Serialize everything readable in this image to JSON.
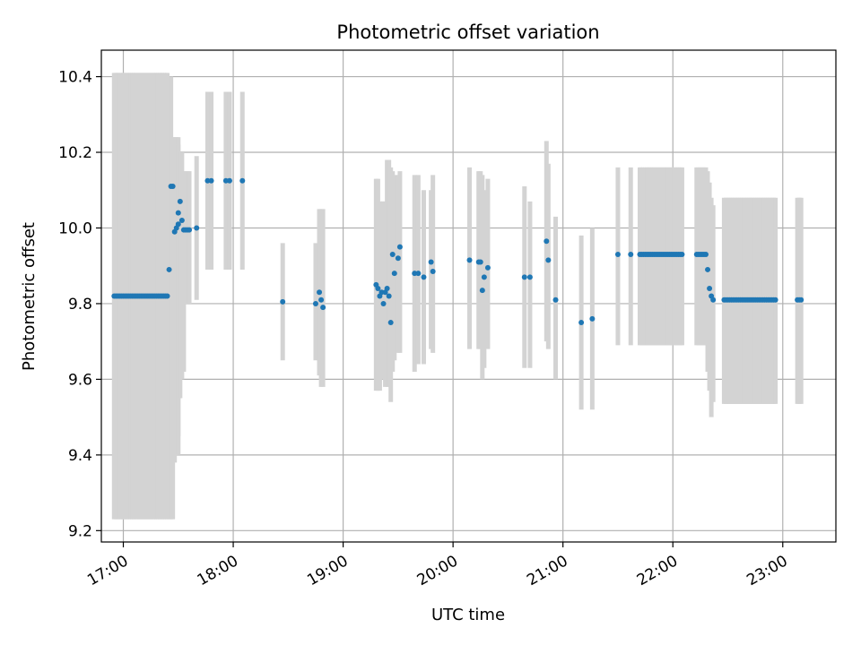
{
  "chart_data": {
    "type": "scatter",
    "title": "Photometric offset variation",
    "xlabel": "UTC time",
    "ylabel": "Photometric offset",
    "xlim": [
      "16:48",
      "23:29"
    ],
    "ylim": [
      9.17,
      10.47
    ],
    "x_ticks": [
      "17:00",
      "18:00",
      "19:00",
      "20:00",
      "21:00",
      "22:00",
      "23:00"
    ],
    "y_ticks": [
      "9.2",
      "9.4",
      "9.6",
      "9.8",
      "10.0",
      "10.2",
      "10.4"
    ],
    "grid": true,
    "colors": {
      "points": "#1f77b4",
      "error_bars": "#d3d3d3",
      "grid": "#b0b0b0"
    },
    "series": [
      {
        "x": [
          "16:55",
          "16:56",
          "16:57",
          "16:58",
          "16:59",
          "17:00",
          "17:01",
          "17:02",
          "17:03",
          "17:04",
          "17:05",
          "17:06",
          "17:07",
          "17:08",
          "17:09",
          "17:10",
          "17:11",
          "17:12",
          "17:13",
          "17:14",
          "17:15",
          "17:16",
          "17:17",
          "17:18",
          "17:19",
          "17:20",
          "17:21",
          "17:22",
          "17:23",
          "17:24",
          "17:25",
          "17:26",
          "17:27",
          "17:28",
          "17:29",
          "17:30",
          "17:30",
          "17:31",
          "17:32",
          "17:33",
          "17:34",
          "17:35",
          "17:36",
          "17:40",
          "17:46",
          "17:48",
          "17:56",
          "17:58",
          "18:05",
          "18:27",
          "18:45",
          "18:47",
          "18:48",
          "18:49",
          "19:18",
          "19:19",
          "19:20",
          "19:21",
          "19:22",
          "19:23",
          "19:24",
          "19:25",
          "19:26",
          "19:27",
          "19:28",
          "19:30",
          "19:31",
          "19:39",
          "19:41",
          "19:44",
          "19:48",
          "19:49",
          "20:09",
          "20:14",
          "20:15",
          "20:16",
          "20:17",
          "20:19",
          "20:39",
          "20:42",
          "20:51",
          "20:52",
          "20:56",
          "21:10",
          "21:16",
          "21:30",
          "21:37",
          "21:42",
          "21:43",
          "21:44",
          "21:45",
          "21:46",
          "21:47",
          "21:48",
          "21:49",
          "21:50",
          "21:51",
          "21:52",
          "21:53",
          "21:54",
          "21:55",
          "21:56",
          "21:57",
          "21:58",
          "21:59",
          "22:00",
          "22:01",
          "22:02",
          "22:03",
          "22:04",
          "22:05",
          "22:13",
          "22:14",
          "22:15",
          "22:16",
          "22:17",
          "22:18",
          "22:19",
          "22:20",
          "22:21",
          "22:22",
          "22:28",
          "22:29",
          "22:30",
          "22:31",
          "22:32",
          "22:33",
          "22:34",
          "22:35",
          "22:36",
          "22:37",
          "22:38",
          "22:39",
          "22:40",
          "22:41",
          "22:42",
          "22:43",
          "22:44",
          "22:45",
          "22:46",
          "22:47",
          "22:48",
          "22:49",
          "22:50",
          "22:51",
          "22:52",
          "22:53",
          "22:54",
          "22:55",
          "22:56",
          "23:08",
          "23:09",
          "23:10"
        ],
        "y": [
          9.82,
          9.82,
          9.82,
          9.82,
          9.82,
          9.82,
          9.82,
          9.82,
          9.82,
          9.82,
          9.82,
          9.82,
          9.82,
          9.82,
          9.82,
          9.82,
          9.82,
          9.82,
          9.82,
          9.82,
          9.82,
          9.82,
          9.82,
          9.82,
          9.82,
          9.82,
          9.82,
          9.82,
          9.82,
          9.82,
          9.89,
          10.11,
          10.11,
          9.99,
          10.0,
          10.01,
          10.04,
          10.07,
          10.02,
          9.995,
          9.995,
          9.995,
          9.995,
          10.0,
          10.125,
          10.125,
          10.125,
          10.125,
          10.125,
          9.805,
          9.8,
          9.83,
          9.81,
          9.79,
          9.85,
          9.84,
          9.82,
          9.83,
          9.8,
          9.83,
          9.84,
          9.82,
          9.75,
          9.93,
          9.88,
          9.92,
          9.95,
          9.88,
          9.88,
          9.87,
          9.91,
          9.885,
          9.915,
          9.91,
          9.91,
          9.835,
          9.87,
          9.895,
          9.87,
          9.87,
          9.965,
          9.915,
          9.81,
          9.75,
          9.76,
          9.93,
          9.93,
          9.93,
          9.93,
          9.93,
          9.93,
          9.93,
          9.93,
          9.93,
          9.93,
          9.93,
          9.93,
          9.93,
          9.93,
          9.93,
          9.93,
          9.93,
          9.93,
          9.93,
          9.93,
          9.93,
          9.93,
          9.93,
          9.93,
          9.93,
          9.93,
          9.93,
          9.93,
          9.93,
          9.93,
          9.93,
          9.93,
          9.89,
          9.84,
          9.82,
          9.81,
          9.81,
          9.81,
          9.81,
          9.81,
          9.81,
          9.81,
          9.81,
          9.81,
          9.81,
          9.81,
          9.81,
          9.81,
          9.81,
          9.81,
          9.81,
          9.81,
          9.81,
          9.81,
          9.81,
          9.81,
          9.81,
          9.81,
          9.81,
          9.81,
          9.81,
          9.81,
          9.81,
          9.81,
          9.81,
          9.81,
          9.81,
          9.81
        ],
        "err_low": [
          9.23,
          9.23,
          9.23,
          9.23,
          9.23,
          9.23,
          9.23,
          9.23,
          9.23,
          9.23,
          9.23,
          9.23,
          9.23,
          9.23,
          9.23,
          9.23,
          9.23,
          9.23,
          9.23,
          9.23,
          9.23,
          9.23,
          9.23,
          9.23,
          9.23,
          9.23,
          9.23,
          9.23,
          9.23,
          9.23,
          9.23,
          9.23,
          9.23,
          9.38,
          9.4,
          9.4,
          9.45,
          9.55,
          9.6,
          9.62,
          9.8,
          9.8,
          9.8,
          9.81,
          9.89,
          9.89,
          9.89,
          9.89,
          9.89,
          9.65,
          9.65,
          9.61,
          9.58,
          9.58,
          9.57,
          9.57,
          9.57,
          9.6,
          9.6,
          9.58,
          9.58,
          9.58,
          9.54,
          9.62,
          9.65,
          9.67,
          9.67,
          9.62,
          9.64,
          9.64,
          9.68,
          9.67,
          9.68,
          9.68,
          9.68,
          9.6,
          9.63,
          9.68,
          9.63,
          9.63,
          9.7,
          9.68,
          9.6,
          9.52,
          9.52,
          9.69,
          9.69,
          9.69,
          9.69,
          9.69,
          9.69,
          9.69,
          9.69,
          9.69,
          9.69,
          9.69,
          9.69,
          9.69,
          9.69,
          9.69,
          9.69,
          9.69,
          9.69,
          9.69,
          9.69,
          9.69,
          9.69,
          9.69,
          9.69,
          9.69,
          9.69,
          9.69,
          9.69,
          9.69,
          9.69,
          9.69,
          9.69,
          9.62,
          9.57,
          9.5,
          9.54,
          9.535,
          9.535,
          9.535,
          9.535,
          9.535,
          9.535,
          9.535,
          9.535,
          9.535,
          9.535,
          9.535,
          9.535,
          9.535,
          9.535,
          9.535,
          9.535,
          9.535,
          9.535,
          9.535,
          9.535,
          9.535,
          9.535,
          9.535,
          9.535,
          9.535,
          9.535,
          9.535,
          9.535,
          9.535,
          9.535,
          9.535,
          9.535
        ],
        "err_high": [
          10.41,
          10.41,
          10.41,
          10.41,
          10.41,
          10.41,
          10.41,
          10.41,
          10.41,
          10.41,
          10.41,
          10.41,
          10.41,
          10.41,
          10.41,
          10.41,
          10.41,
          10.41,
          10.41,
          10.41,
          10.41,
          10.41,
          10.41,
          10.41,
          10.41,
          10.41,
          10.41,
          10.41,
          10.41,
          10.41,
          10.4,
          10.4,
          10.24,
          10.24,
          10.24,
          10.24,
          10.22,
          10.2,
          10.2,
          10.15,
          10.15,
          10.15,
          10.15,
          10.19,
          10.36,
          10.36,
          10.36,
          10.36,
          10.36,
          9.96,
          9.96,
          10.05,
          10.05,
          10.05,
          10.13,
          10.13,
          10.07,
          10.07,
          10.07,
          10.07,
          10.18,
          10.18,
          10.16,
          10.15,
          10.14,
          10.14,
          10.15,
          10.14,
          10.14,
          10.1,
          10.1,
          10.14,
          10.16,
          10.15,
          10.15,
          10.14,
          10.1,
          10.13,
          10.11,
          10.07,
          10.23,
          10.17,
          10.03,
          9.98,
          10.0,
          10.16,
          10.16,
          10.16,
          10.16,
          10.16,
          10.16,
          10.16,
          10.16,
          10.16,
          10.16,
          10.16,
          10.16,
          10.16,
          10.16,
          10.16,
          10.16,
          10.16,
          10.16,
          10.16,
          10.16,
          10.16,
          10.16,
          10.16,
          10.16,
          10.16,
          10.16,
          10.16,
          10.16,
          10.16,
          10.16,
          10.16,
          10.16,
          10.15,
          10.12,
          10.08,
          10.06,
          10.08,
          10.08,
          10.08,
          10.08,
          10.08,
          10.08,
          10.08,
          10.08,
          10.08,
          10.08,
          10.08,
          10.08,
          10.08,
          10.08,
          10.08,
          10.08,
          10.08,
          10.08,
          10.08,
          10.08,
          10.08,
          10.08,
          10.08,
          10.08,
          10.08,
          10.08,
          10.08,
          10.08,
          10.08,
          10.08,
          10.08,
          10.08
        ]
      }
    ]
  }
}
